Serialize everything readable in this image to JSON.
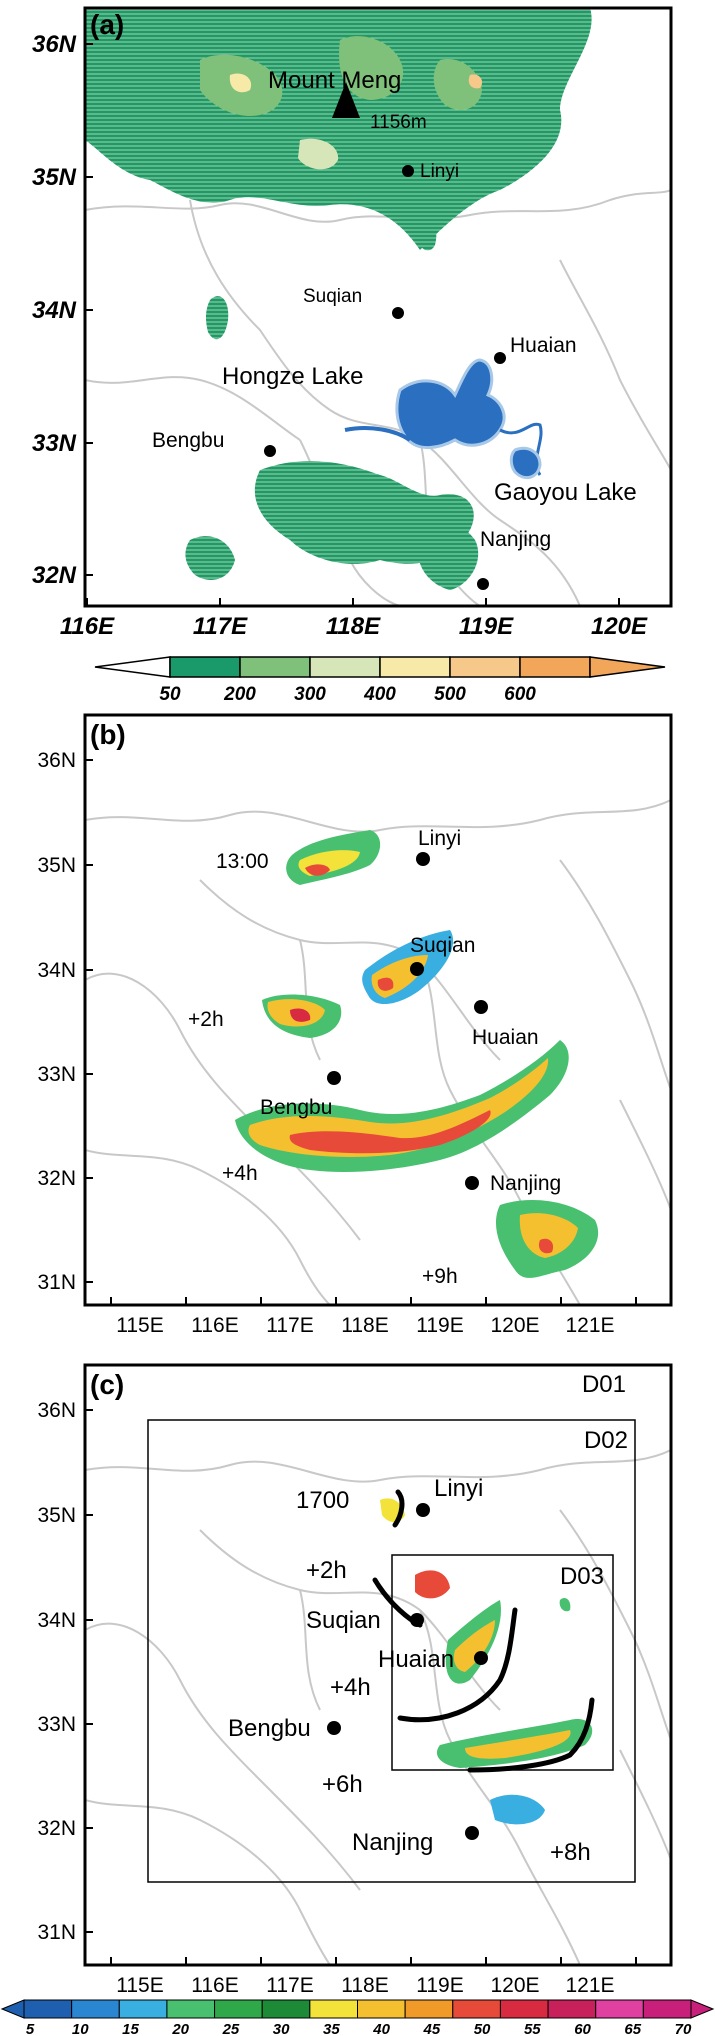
{
  "panels": {
    "a": {
      "label": "(a)",
      "lat_ticks": [
        "36N",
        "35N",
        "34N",
        "33N",
        "32N"
      ],
      "lon_ticks": [
        "116E",
        "117E",
        "118E",
        "119E",
        "120E"
      ],
      "places": {
        "mount": "Mount Meng",
        "elevation": "1156m",
        "linyi": "Linyi",
        "suqian": "Suqian",
        "huaian": "Huaian",
        "hongze": "Hongze Lake",
        "bengbu": "Bengbu",
        "gaoyou": "Gaoyou Lake",
        "nanjing": "Nanjing"
      },
      "colorbar": {
        "labels": [
          "50",
          "200",
          "300",
          "400",
          "500",
          "600"
        ],
        "colors": [
          "#1a9a6a",
          "#7fc07a",
          "#d6e6b8",
          "#f7e9a8",
          "#f6c98a",
          "#f2a65a"
        ]
      }
    },
    "b": {
      "label": "(b)",
      "lat_ticks": [
        "36N",
        "35N",
        "34N",
        "33N",
        "32N",
        "31N"
      ],
      "lon_ticks": [
        "115E",
        "116E",
        "117E",
        "118E",
        "119E",
        "120E",
        "121E"
      ],
      "places": {
        "linyi": "Linyi",
        "suqian": "Suqian",
        "huaian": "Huaian",
        "bengbu": "Bengbu",
        "nanjing": "Nanjing"
      },
      "times": [
        "13:00",
        "+2h",
        "+4h",
        "+9h"
      ]
    },
    "c": {
      "label": "(c)",
      "lat_ticks": [
        "36N",
        "35N",
        "34N",
        "33N",
        "32N",
        "31N"
      ],
      "lon_ticks": [
        "115E",
        "116E",
        "117E",
        "118E",
        "119E",
        "120E",
        "121E"
      ],
      "domains": [
        "D01",
        "D02",
        "D03"
      ],
      "places": {
        "linyi": "Linyi",
        "suqian": "Suqian",
        "huaian": "Huaian",
        "bengbu": "Bengbu",
        "nanjing": "Nanjing"
      },
      "times": [
        "1700",
        "+2h",
        "+4h",
        "+6h",
        "+8h"
      ]
    }
  },
  "reflectivity_colorbar": {
    "labels": [
      "5",
      "10",
      "15",
      "20",
      "25",
      "30",
      "35",
      "40",
      "45",
      "50",
      "55",
      "60",
      "65",
      "70"
    ],
    "colors": [
      "#1f5fb0",
      "#2a86d0",
      "#39aee0",
      "#48c070",
      "#2fa84a",
      "#1c8a36",
      "#f2e23a",
      "#f5c030",
      "#f09a2a",
      "#e84a3a",
      "#d82a40",
      "#c8205a",
      "#e040a0",
      "#c8207a"
    ]
  }
}
